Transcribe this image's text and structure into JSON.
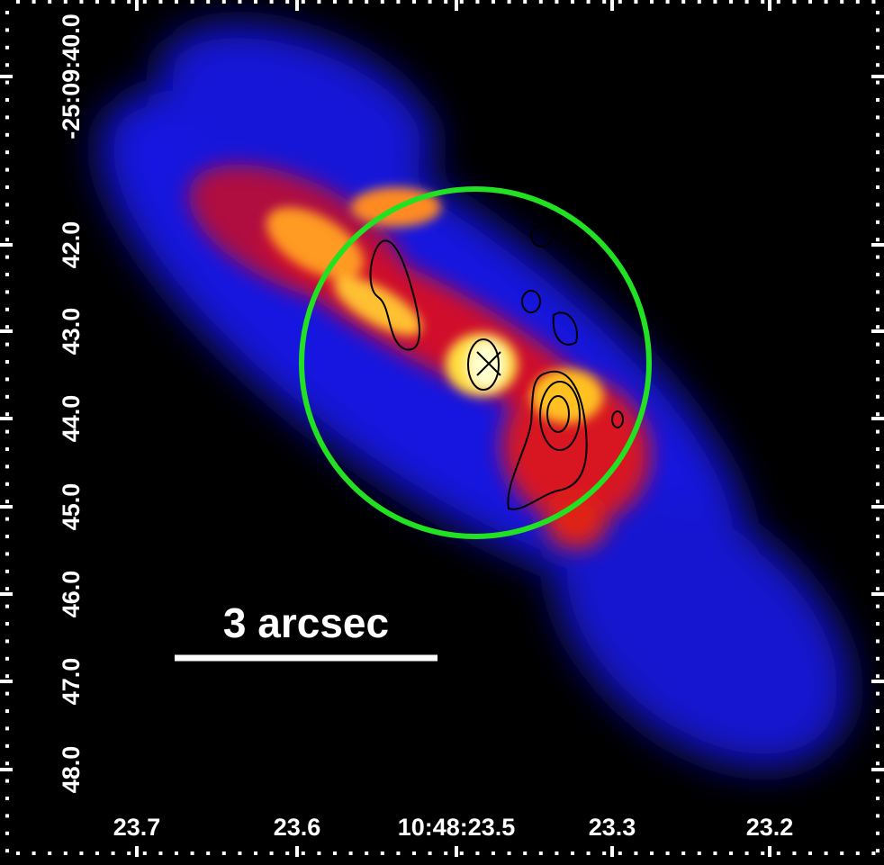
{
  "image": {
    "scale_bar_label": "3 arcsec",
    "x_labels": [
      "23.7",
      "23.6",
      "10:48:23.5",
      "23.3",
      "23.2"
    ],
    "y_labels": [
      "-25:09:40.0",
      "42.0",
      "43.0",
      "44.0",
      "45.0",
      "46.0",
      "47.0",
      "48.0"
    ]
  }
}
